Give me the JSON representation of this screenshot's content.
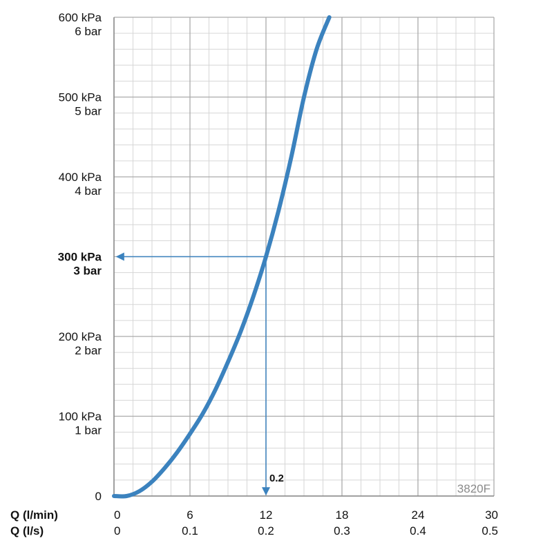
{
  "chart_data": {
    "type": "line",
    "code_label": "3820F",
    "colors": {
      "curve": "#3b82be",
      "arrow": "#3b82be",
      "grid_major": "#aaaaaa",
      "grid_minor": "#d6d6d6"
    },
    "x_axis": {
      "title_primary": "Q (l/min)",
      "title_secondary": "Q (l/s)",
      "range": [
        0,
        30
      ],
      "ticks": [
        0,
        6,
        12,
        18,
        24,
        30
      ],
      "tick_labels_primary": [
        "0",
        "6",
        "12",
        "18",
        "24",
        "30"
      ],
      "tick_labels_secondary": [
        "0",
        "0.1",
        "0.2",
        "0.3",
        "0.4",
        "0.5"
      ],
      "minor_step": 1.5
    },
    "y_axis": {
      "range": [
        0,
        600
      ],
      "ticks": [
        0,
        100,
        200,
        300,
        400,
        500,
        600
      ],
      "tick_labels_kpa": [
        "0",
        "100 kPa",
        "200 kPa",
        "300 kPa",
        "400 kPa",
        "500 kPa",
        "600 kPa"
      ],
      "tick_labels_bar": [
        "",
        "1 bar",
        "2 bar",
        "3 bar",
        "4 bar",
        "5 bar",
        "6 bar"
      ],
      "bold_tick": 300,
      "minor_step": 20
    },
    "series": [
      {
        "x": [
          0,
          1,
          2,
          3,
          4,
          5,
          6,
          7,
          8,
          9,
          10,
          11,
          12,
          13,
          14,
          15,
          16,
          17
        ],
        "y": [
          0,
          0,
          6,
          18,
          35,
          55,
          78,
          103,
          133,
          168,
          206,
          250,
          300,
          358,
          425,
          500,
          560,
          600
        ]
      }
    ],
    "annotation": {
      "point": [
        12,
        300
      ],
      "label": "0.2"
    }
  }
}
